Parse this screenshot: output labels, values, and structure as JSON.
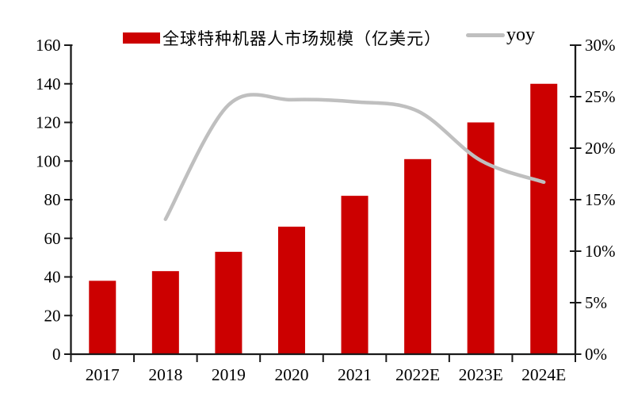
{
  "chart_data": {
    "type": "bar",
    "title": "",
    "categories": [
      "2017",
      "2018",
      "2019",
      "2020",
      "2021",
      "2022E",
      "2023E",
      "2024E"
    ],
    "series": [
      {
        "name": "全球特种机器人市场规模（亿美元）",
        "kind": "bar",
        "axis": "left",
        "color": "#CC0000",
        "values": [
          38,
          43,
          53,
          66,
          82,
          101,
          120,
          140
        ]
      },
      {
        "name": "yoy",
        "kind": "line",
        "axis": "right",
        "color": "#BFBFBF",
        "unit": "%",
        "values": [
          null,
          13.1,
          24.2,
          24.7,
          24.5,
          23.6,
          18.8,
          16.7
        ]
      }
    ],
    "axes": {
      "left": {
        "min": 0,
        "max": 160,
        "step": 20,
        "tick_labels": [
          "0",
          "20",
          "40",
          "60",
          "80",
          "100",
          "120",
          "140",
          "160"
        ]
      },
      "right": {
        "min": 0,
        "max": 30,
        "step": 5,
        "tick_labels": [
          "0%",
          "5%",
          "10%",
          "15%",
          "20%",
          "25%",
          "30%"
        ]
      }
    },
    "legend_position": "top",
    "grid": false
  },
  "colors": {
    "bar": "#CC0000",
    "line": "#BFBFBF",
    "axis": "#1A1A1A",
    "text": "#000000",
    "background": "#FFFFFF"
  }
}
